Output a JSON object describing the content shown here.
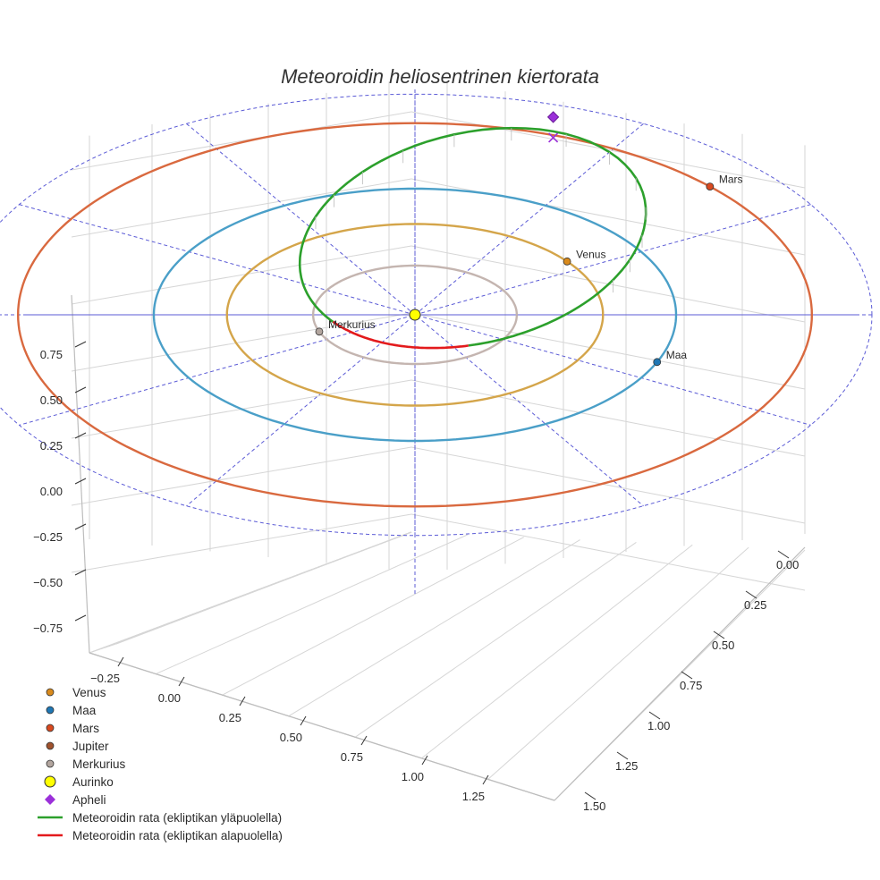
{
  "chart_data": {
    "type": "scatter3d",
    "title": "Meteoroidin heliosentrinen kiertorata",
    "axes": {
      "x": {
        "ticks": [
          "−0.25",
          "0.00",
          "0.25",
          "0.50",
          "0.75",
          "1.00",
          "1.25"
        ]
      },
      "y": {
        "ticks": [
          "0.00",
          "0.25",
          "0.50",
          "0.75",
          "1.00",
          "1.25",
          "1.50"
        ]
      },
      "z": {
        "ticks": [
          "0.75",
          "0.50",
          "0.25",
          "0.00",
          "−0.25",
          "−0.50",
          "−0.75"
        ]
      }
    },
    "grid": true,
    "planet_orbits": [
      {
        "name": "Merkurius",
        "radius_au": 0.39,
        "color": "#c4b5b0"
      },
      {
        "name": "Venus",
        "radius_au": 0.72,
        "color": "#d4a54a"
      },
      {
        "name": "Maa",
        "radius_au": 1.0,
        "color": "#4a9fc8"
      },
      {
        "name": "Mars",
        "radius_au": 1.52,
        "color": "#d9693f"
      }
    ],
    "planets": [
      {
        "name": "Merkurius",
        "label": "Merkurius",
        "angle_deg": 200,
        "color": "#b3a69f"
      },
      {
        "name": "Venus",
        "label": "Venus",
        "angle_deg": 36,
        "color": "#d98a1c"
      },
      {
        "name": "Maa",
        "label": "Maa",
        "angle_deg": -22,
        "color": "#1f77b4"
      },
      {
        "name": "Mars",
        "label": "Mars",
        "angle_deg": 42,
        "color": "#d9491f"
      }
    ],
    "sun": {
      "name": "Aurinko",
      "color": "#ffff00"
    },
    "aphelion": {
      "name": "Apheli",
      "color": "#9b30d9"
    },
    "meteoroid_orbit": {
      "above_label": "Meteoroidin rata (ekliptikan yläpuolella)",
      "below_label": "Meteoroidin rata (ekliptikan alapuolella)",
      "above_color": "#2ca02c",
      "below_color": "#e31a1c"
    },
    "legend": [
      {
        "label": "Venus",
        "symbol": "dot",
        "color": "#d98a1c"
      },
      {
        "label": "Maa",
        "symbol": "dot",
        "color": "#1f77b4"
      },
      {
        "label": "Mars",
        "symbol": "dot",
        "color": "#d9491f"
      },
      {
        "label": "Jupiter",
        "symbol": "dot",
        "color": "#a0522d"
      },
      {
        "label": "Merkurius",
        "symbol": "dot",
        "color": "#b3a69f"
      },
      {
        "label": "Aurinko",
        "symbol": "bigdot",
        "color": "#ffff00"
      },
      {
        "label": "Apheli",
        "symbol": "diamond",
        "color": "#9b30d9"
      },
      {
        "label": "Meteoroidin rata (ekliptikan yläpuolella)",
        "symbol": "line",
        "color": "#2ca02c"
      },
      {
        "label": "Meteoroidin rata (ekliptikan alapuolella)",
        "symbol": "line",
        "color": "#e31a1c"
      }
    ]
  }
}
